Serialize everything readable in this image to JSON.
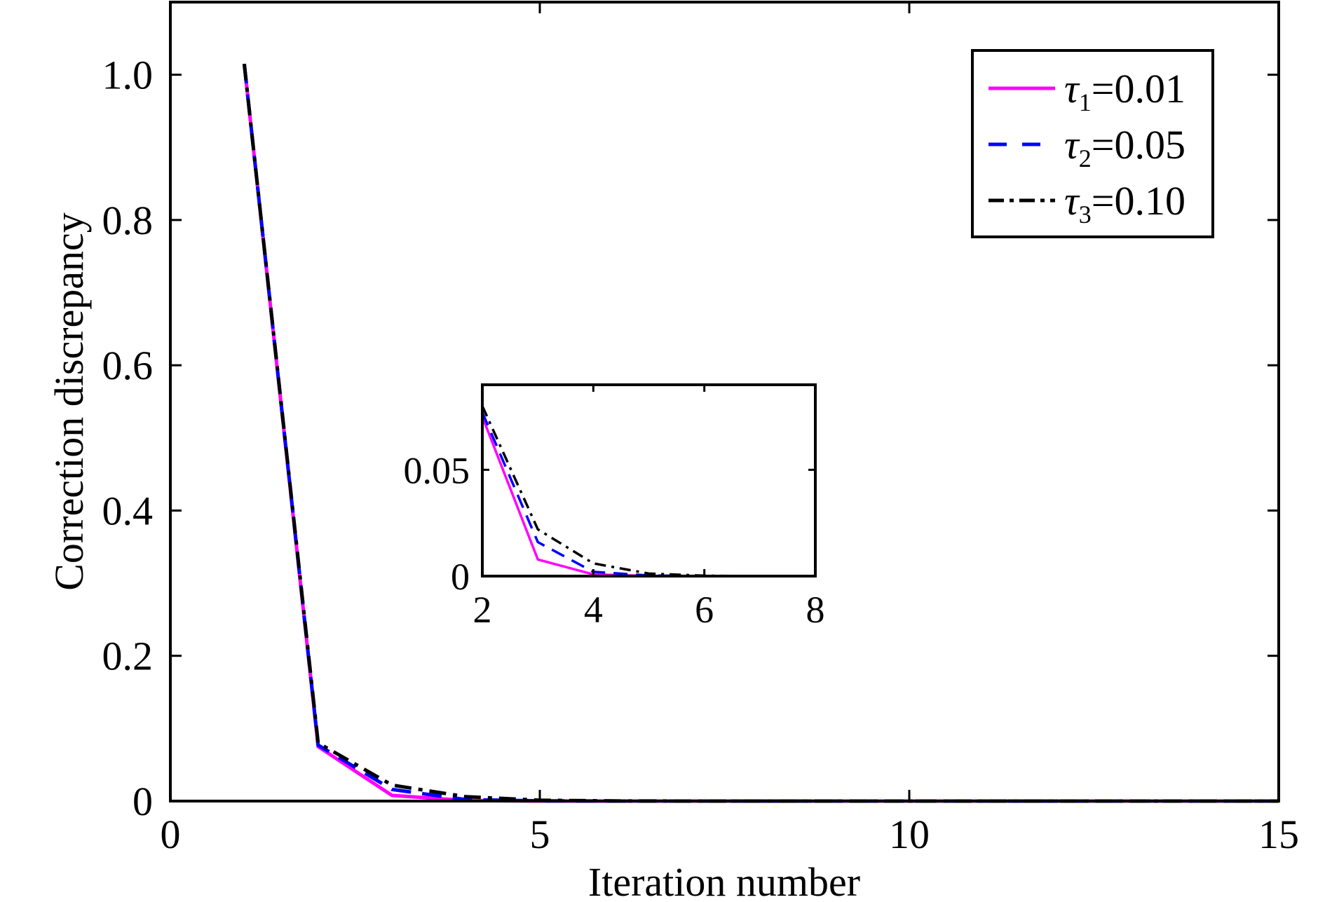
{
  "chart_data": {
    "type": "line",
    "title": "",
    "xlabel": "Iteration number",
    "ylabel": "Correction discrepancy",
    "xlim": [
      0,
      15
    ],
    "ylim": [
      0,
      1.1
    ],
    "x_ticks": [
      0,
      5,
      10,
      15
    ],
    "x_tick_labels": [
      "0",
      "5",
      "10",
      "15"
    ],
    "y_ticks": [
      0,
      0.2,
      0.4,
      0.6,
      0.8,
      1.0
    ],
    "y_tick_labels": [
      "0",
      "0.2",
      "0.4",
      "0.6",
      "0.8",
      "1.0"
    ],
    "grid": false,
    "legend_position": "top-right",
    "x": [
      1,
      2,
      3,
      4,
      5,
      6,
      7,
      8,
      9,
      10,
      11,
      12,
      13,
      14,
      15
    ],
    "series": [
      {
        "symbol": "τ",
        "index": "1",
        "value_text": "=0.01",
        "color": "#ff00ff",
        "dash": "solid",
        "values": [
          1.015,
          0.075,
          0.0078,
          0.0008,
          0.0001,
          0,
          0,
          0,
          0,
          0,
          0,
          0,
          0,
          0,
          0
        ]
      },
      {
        "symbol": "τ",
        "index": "2",
        "value_text": "=0.05",
        "color": "#0000ff",
        "dash": "dashed",
        "values": [
          1.015,
          0.077,
          0.016,
          0.002,
          0.0003,
          0,
          0,
          0,
          0,
          0,
          0,
          0,
          0,
          0,
          0
        ]
      },
      {
        "symbol": "τ",
        "index": "3",
        "value_text": "=0.10",
        "color": "#000000",
        "dash": "dashdot",
        "values": [
          1.015,
          0.08,
          0.022,
          0.006,
          0.0012,
          0.0002,
          0,
          0,
          0,
          0,
          0,
          0,
          0,
          0,
          0
        ]
      }
    ],
    "inset": {
      "xlim": [
        2,
        8
      ],
      "ylim": [
        0,
        0.09
      ],
      "x_ticks": [
        2,
        4,
        6,
        8
      ],
      "x_tick_labels": [
        "2",
        "4",
        "6",
        "8"
      ],
      "y_ticks": [
        0,
        0.05
      ],
      "y_tick_labels": [
        "0",
        "0.05"
      ]
    }
  }
}
